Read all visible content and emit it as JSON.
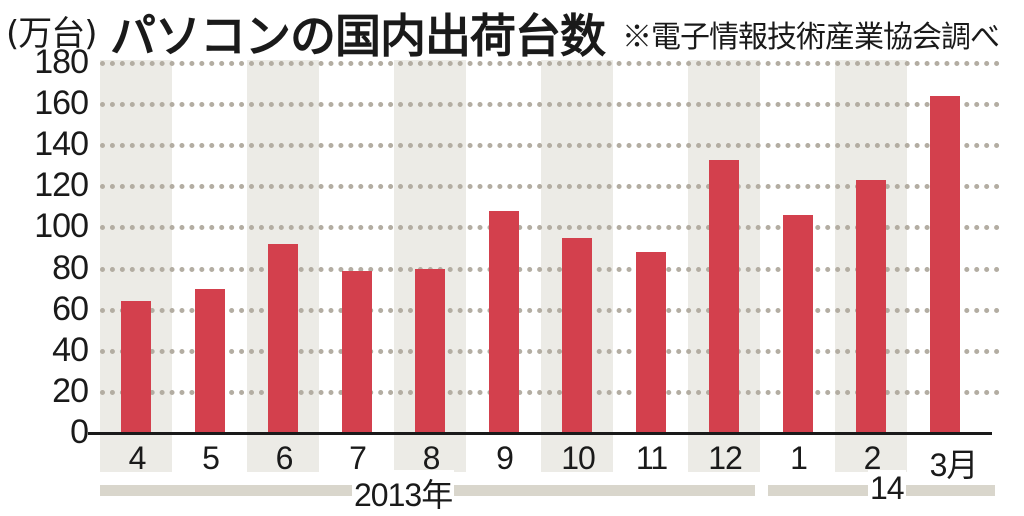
{
  "header": {
    "unit": "(万台)",
    "title": "パソコンの国内出荷台数",
    "source": "※電子情報技術産業協会調べ"
  },
  "chart_data": {
    "type": "bar",
    "title": "パソコンの国内出荷台数",
    "subtitle": "※電子情報技術産業協会調べ",
    "ylabel": "(万台)",
    "xlabel": "",
    "categories": [
      "4",
      "5",
      "6",
      "7",
      "8",
      "9",
      "10",
      "11",
      "12",
      "1",
      "2",
      "3月"
    ],
    "values": [
      64,
      70,
      92,
      79,
      80,
      108,
      95,
      88,
      133,
      106,
      123,
      164
    ],
    "ylim": [
      0,
      180
    ],
    "yticks": [
      0,
      20,
      40,
      60,
      80,
      100,
      120,
      140,
      160,
      180
    ],
    "grid": true,
    "year_groups": [
      {
        "label": "2013年",
        "months": [
          "4",
          "5",
          "6",
          "7",
          "8",
          "9",
          "10",
          "11",
          "12"
        ]
      },
      {
        "label": "14",
        "months": [
          "1",
          "2",
          "3月"
        ]
      }
    ],
    "colors": {
      "bar": "#d3404d",
      "band": "#ecebe6",
      "grid": "#b3ada2",
      "year_bar": "#d9d6cc"
    }
  }
}
